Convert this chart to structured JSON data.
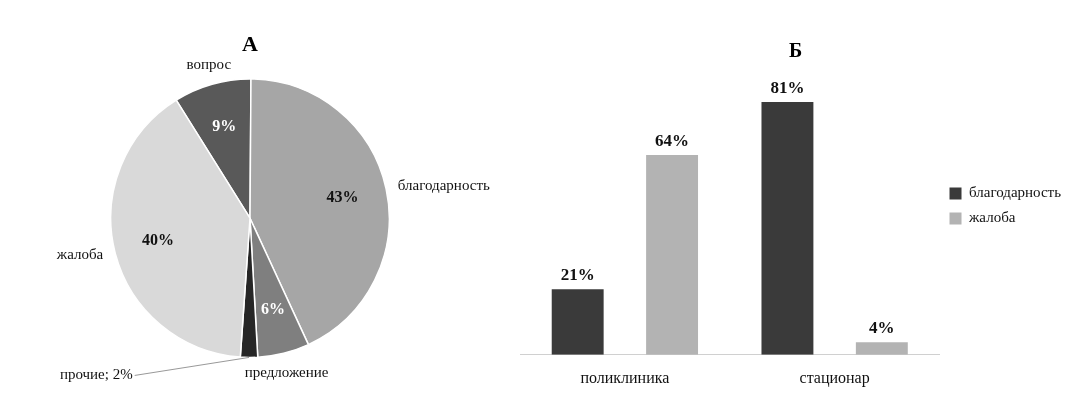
{
  "chart_data": [
    {
      "type": "pie",
      "title": "А",
      "categories": [
        "вопрос",
        "благодарность",
        "предложение",
        "прочие; 2%",
        "жалоба"
      ],
      "values": [
        9,
        43,
        6,
        2,
        40
      ],
      "colors": [
        "#595959",
        "#a6a6a6",
        "#7f7f7f",
        "#262626",
        "#d9d9d9"
      ],
      "value_labels": [
        "9%",
        "43%",
        "6%",
        null,
        "40%"
      ],
      "legend": false
    },
    {
      "type": "bar",
      "title": "Б",
      "categories": [
        "поликлиника",
        "стационар"
      ],
      "series": [
        {
          "name": "благодарность",
          "color": "#3a3a3a",
          "values": [
            21,
            81
          ],
          "value_labels": [
            "21%",
            "81%"
          ]
        },
        {
          "name": "жалоба",
          "color": "#b3b3b3",
          "values": [
            64,
            4
          ],
          "value_labels": [
            "64%",
            "4%"
          ]
        }
      ],
      "legend": "right",
      "grid": false,
      "tick_labels": "x"
    }
  ]
}
